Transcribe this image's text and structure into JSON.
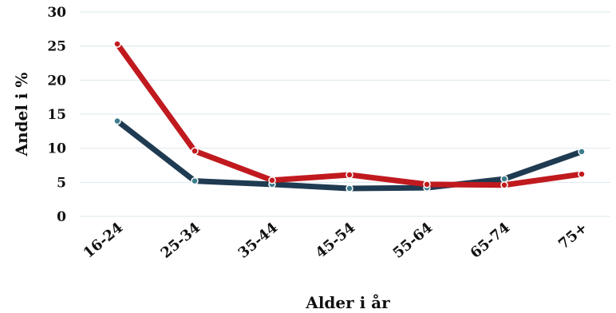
{
  "chart_data": {
    "type": "line",
    "categories": [
      "16-24",
      "25-34",
      "35-44",
      "45-54",
      "55-64",
      "65-74",
      "75+"
    ],
    "series": [
      {
        "values": [
          14.0,
          5.2,
          4.7,
          4.1,
          4.2,
          5.5,
          9.5
        ],
        "color": "#1f3b52",
        "marker_color": "#3c7d8c"
      },
      {
        "values": [
          25.3,
          9.6,
          5.3,
          6.1,
          4.7,
          4.6,
          6.2
        ],
        "color": "#c01a1f",
        "marker_color": "#c01a1f"
      }
    ],
    "xlabel": "Alder i år",
    "ylabel": "Andel i %",
    "ylim": [
      0,
      30
    ],
    "yticks": [
      0,
      5,
      10,
      15,
      20,
      25,
      30
    ],
    "grid": true
  }
}
